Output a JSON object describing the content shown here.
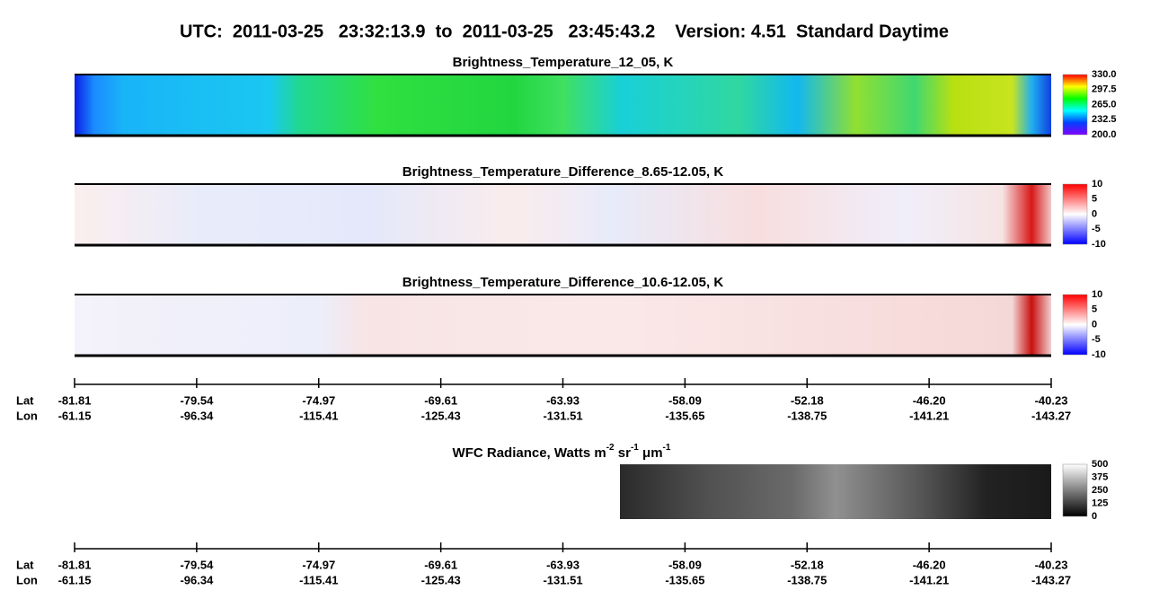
{
  "title": "UTC:  2011-03-25   23:32:13.9  to  2011-03-25   23:45:43.2    Version: 4.51  Standard Daytime",
  "panels": [
    {
      "title": "Brightness_Temperature_12_05, K",
      "colorbar_ticks": [
        "330.0",
        "297.5",
        "265.0",
        "232.5",
        "200.0"
      ]
    },
    {
      "title": "Brightness_Temperature_Difference_8.65-12.05, K",
      "colorbar_ticks": [
        "10",
        "5",
        "0",
        "-5",
        "-10"
      ]
    },
    {
      "title": "Brightness_Temperature_Difference_10.6-12.05, K",
      "colorbar_ticks": [
        "10",
        "5",
        "0",
        "-5",
        "-10"
      ]
    }
  ],
  "wfc": {
    "title": [
      {
        "text": "WFC Radiance, Watts m",
        "sup": false
      },
      {
        "text": "-2",
        "sup": true
      },
      {
        "text": " sr",
        "sup": false
      },
      {
        "text": "-1",
        "sup": true
      },
      {
        "text": " μm",
        "sup": false
      },
      {
        "text": "-1",
        "sup": true
      }
    ],
    "colorbar_ticks": [
      "500",
      "375",
      "250",
      "125",
      "0"
    ]
  },
  "axes": [
    {
      "lat_label": "Lat",
      "lon_label": "Lon",
      "lat": [
        "-81.81",
        "-79.54",
        "-74.97",
        "-69.61",
        "-63.93",
        "-58.09",
        "-52.18",
        "-46.20",
        "-40.23"
      ],
      "lon": [
        "-61.15",
        "-96.34",
        "-115.41",
        "-125.43",
        "-131.51",
        "-135.65",
        "-138.75",
        "-141.21",
        "-143.27"
      ]
    },
    {
      "lat_label": "Lat",
      "lon_label": "Lon",
      "lat": [
        "-81.81",
        "-79.54",
        "-74.97",
        "-69.61",
        "-63.93",
        "-58.09",
        "-52.18",
        "-46.20",
        "-40.23"
      ],
      "lon": [
        "-61.15",
        "-96.34",
        "-115.41",
        "-125.43",
        "-131.51",
        "-135.65",
        "-138.75",
        "-141.21",
        "-143.27"
      ]
    }
  ]
}
